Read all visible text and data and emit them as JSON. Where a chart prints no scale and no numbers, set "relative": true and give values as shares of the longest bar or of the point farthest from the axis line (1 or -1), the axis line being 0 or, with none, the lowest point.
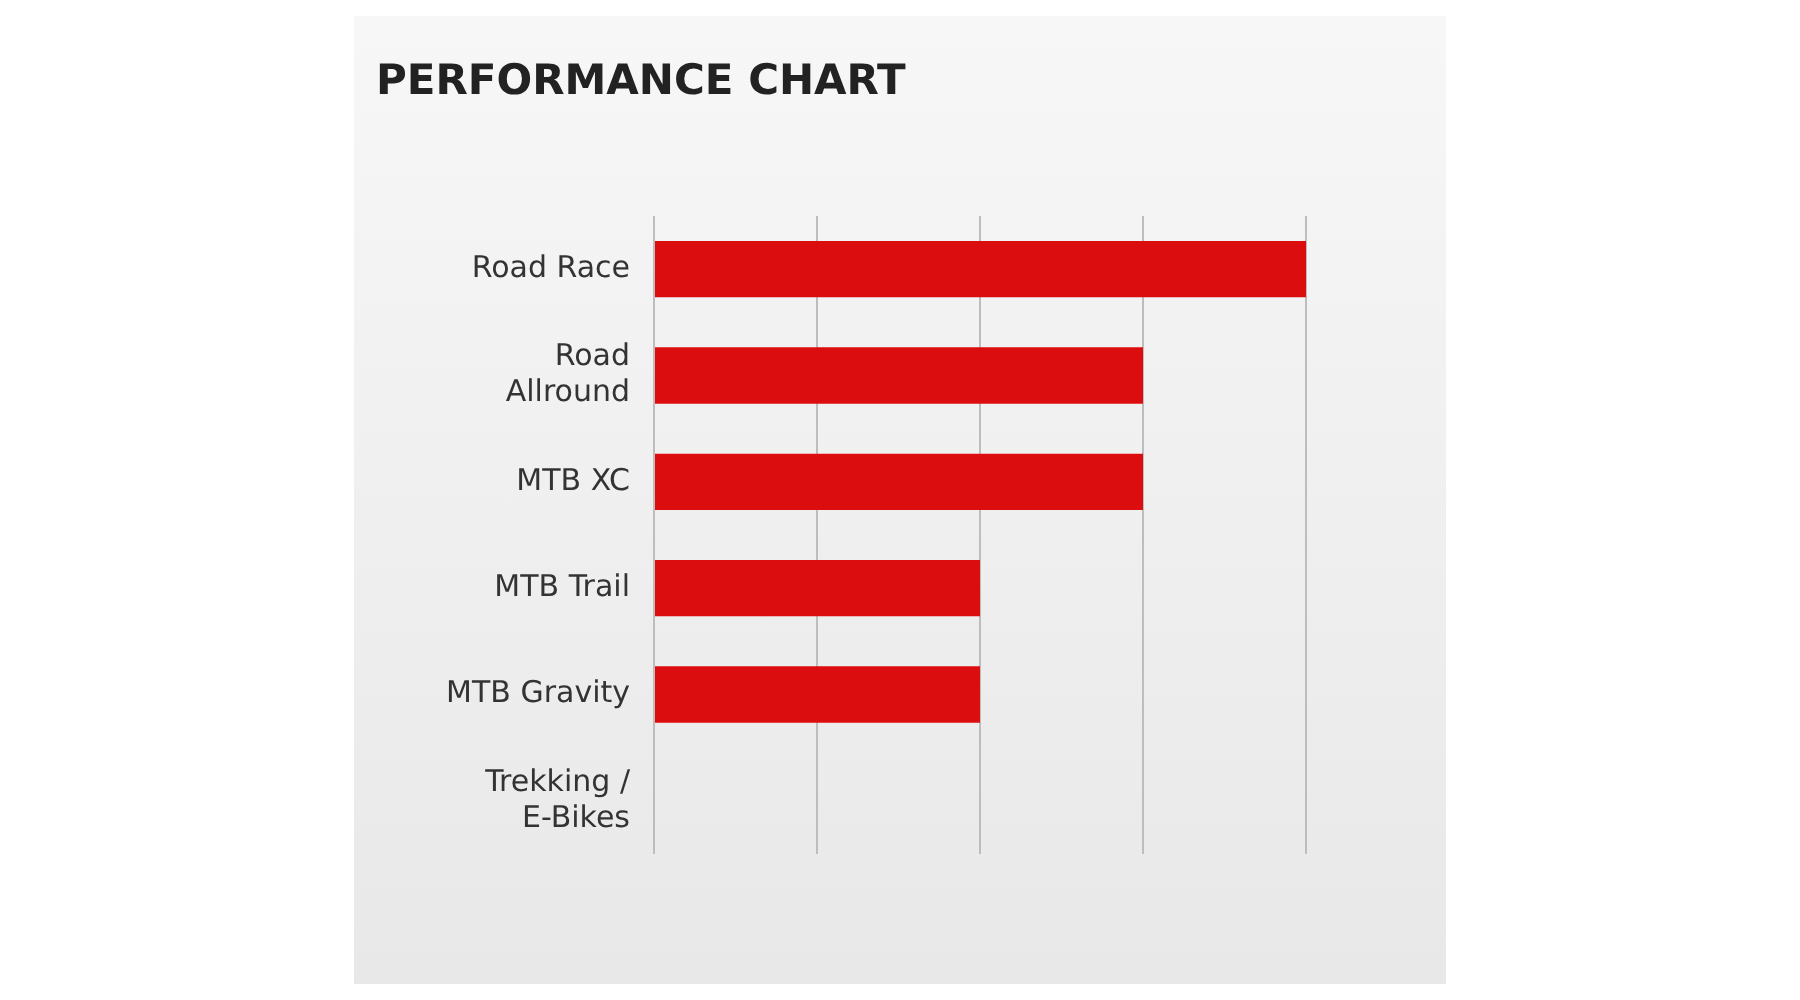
{
  "chart_data": {
    "type": "bar",
    "title": "PERFORMANCE CHART",
    "orientation": "horizontal",
    "relative": true,
    "grid": "x",
    "legend": false,
    "categories": [
      "Road Race",
      "Road Allround",
      "MTB XC",
      "MTB Trail",
      "MTB Gravity",
      "Trekking / E-Bikes"
    ],
    "values": [
      1,
      0.75,
      0.75,
      0.5,
      0.5,
      0
    ],
    "color": "#dc0d0f"
  }
}
